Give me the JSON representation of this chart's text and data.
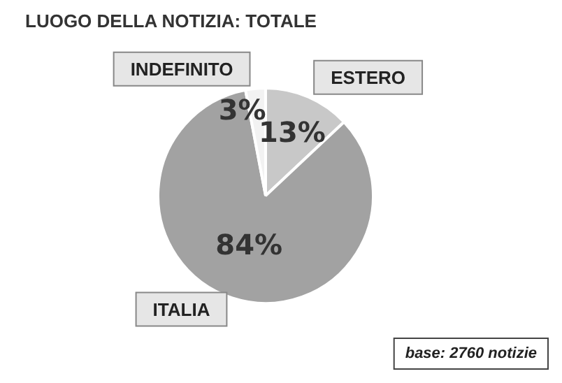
{
  "chart_data": {
    "type": "pie",
    "title": "LUOGO DELLA NOTIZIA: TOTALE",
    "categories": [
      "ESTERO",
      "ITALIA",
      "INDEFINITO"
    ],
    "values": [
      13,
      84,
      3
    ],
    "colors": [
      "#c8c8c8",
      "#a2a2a2",
      "#f2f2f2"
    ],
    "value_labels": [
      "13%",
      "84%",
      "3%"
    ],
    "legend": false,
    "annotations": [
      "base: 2760 notizie"
    ]
  }
}
